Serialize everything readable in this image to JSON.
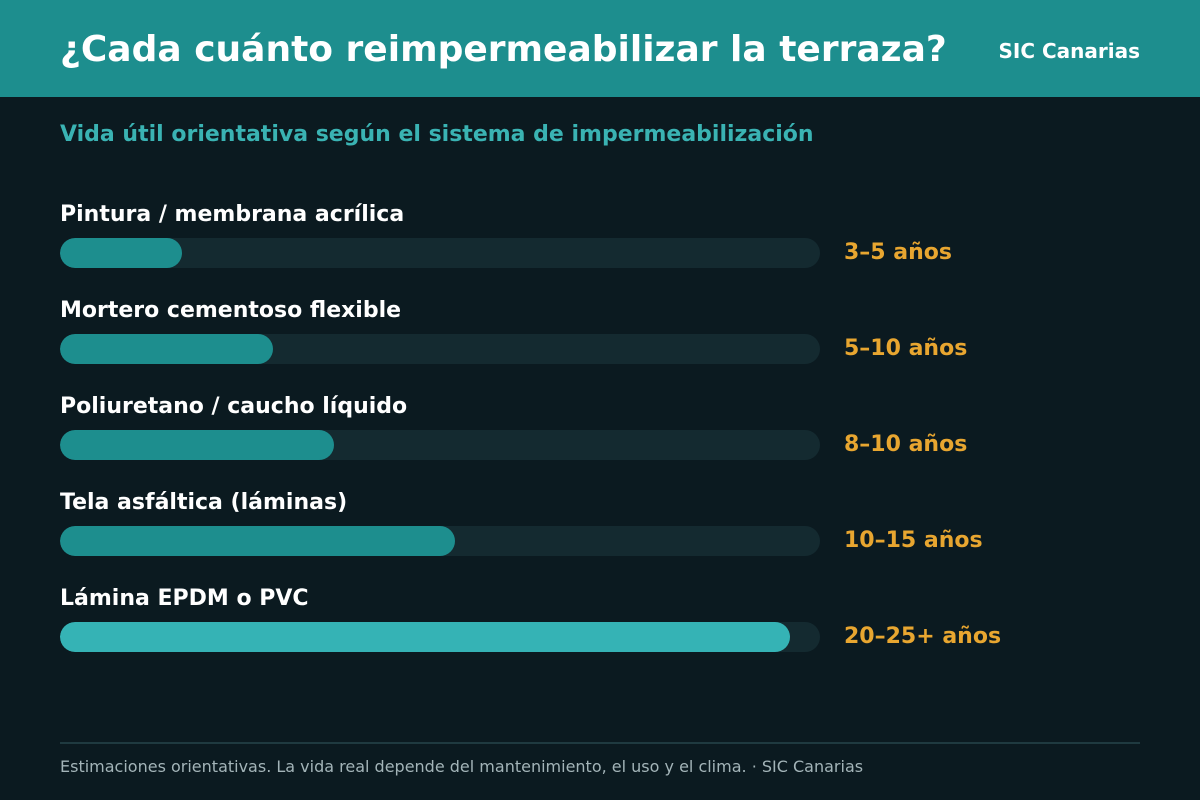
{
  "header": {
    "title": "¿Cada cuánto reimpermeabilizar la terraza?",
    "brand": "SIC Canarias"
  },
  "colors": {
    "header_bg": "#1d8e8e",
    "background": "#0b1a20",
    "track": "#142a30",
    "bar": "#1d8e8e",
    "bar_highlight": "#35b3b5",
    "value_text": "#e8a630",
    "subtitle_text": "#3ab3b3"
  },
  "chart_data": {
    "type": "bar",
    "orientation": "horizontal",
    "title": "¿Cada cuánto reimpermeabilizar la terraza?",
    "subtitle": "Vida útil orientativa según el sistema de impermeabilización",
    "unit": "años",
    "categories": [
      "Pintura / membrana acrílica",
      "Mortero cementoso flexible",
      "Poliuretano / caucho líquido",
      "Tela asfáltica (láminas)",
      "Lámina EPDM o PVC"
    ],
    "value_labels": [
      "3–5 años",
      "5–10 años",
      "8–10 años",
      "10–15 años",
      "20–25+ años"
    ],
    "values": [
      4,
      7,
      9,
      13,
      24
    ],
    "xlim": [
      0,
      25
    ],
    "highlight_index": 4,
    "grid": false
  },
  "footer": {
    "note": "Estimaciones orientativas. La vida real depende del mantenimiento, el uso y el clima. · SIC Canarias"
  }
}
